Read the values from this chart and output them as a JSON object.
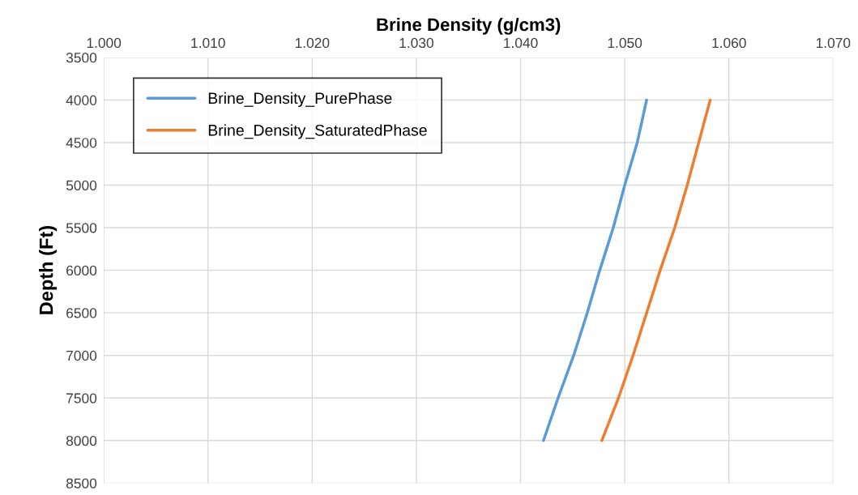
{
  "chart_data": {
    "type": "line",
    "xlabel": "Brine Density (g/cm3)",
    "ylabel": "Depth (Ft)",
    "xlim": [
      1.0,
      1.07
    ],
    "xticks": [
      {
        "value": 1.0,
        "label": "1.000"
      },
      {
        "value": 1.01,
        "label": "1.010"
      },
      {
        "value": 1.02,
        "label": "1.020"
      },
      {
        "value": 1.03,
        "label": "1.030"
      },
      {
        "value": 1.04,
        "label": "1.040"
      },
      {
        "value": 1.05,
        "label": "1.050"
      },
      {
        "value": 1.06,
        "label": "1.060"
      },
      {
        "value": 1.07,
        "label": "1.070"
      }
    ],
    "ylim": [
      8500,
      3500
    ],
    "yticks": [
      3500,
      4000,
      4500,
      5000,
      5500,
      6000,
      6500,
      7000,
      7500,
      8000,
      8500
    ],
    "grid": true,
    "legend": "top left",
    "marker": "none",
    "line_style": "solid",
    "series": [
      {
        "name": "Brine_Density_PurePhase",
        "color": "#5b9bd5",
        "x": [
          1.0521,
          1.0512,
          1.05,
          1.0489,
          1.0476,
          1.0464,
          1.0451,
          1.0436,
          1.0422
        ],
        "values": [
          4000,
          4500,
          5000,
          5500,
          6000,
          6500,
          7000,
          7500,
          8000
        ]
      },
      {
        "name": "Brine_Density_SaturatedPhase",
        "color": "#ed7d31",
        "x": [
          1.0582,
          1.0571,
          1.056,
          1.0548,
          1.0534,
          1.0521,
          1.0508,
          1.0494,
          1.0478
        ],
        "values": [
          4000,
          4500,
          5000,
          5500,
          6000,
          6500,
          7000,
          7500,
          8000
        ]
      }
    ]
  }
}
